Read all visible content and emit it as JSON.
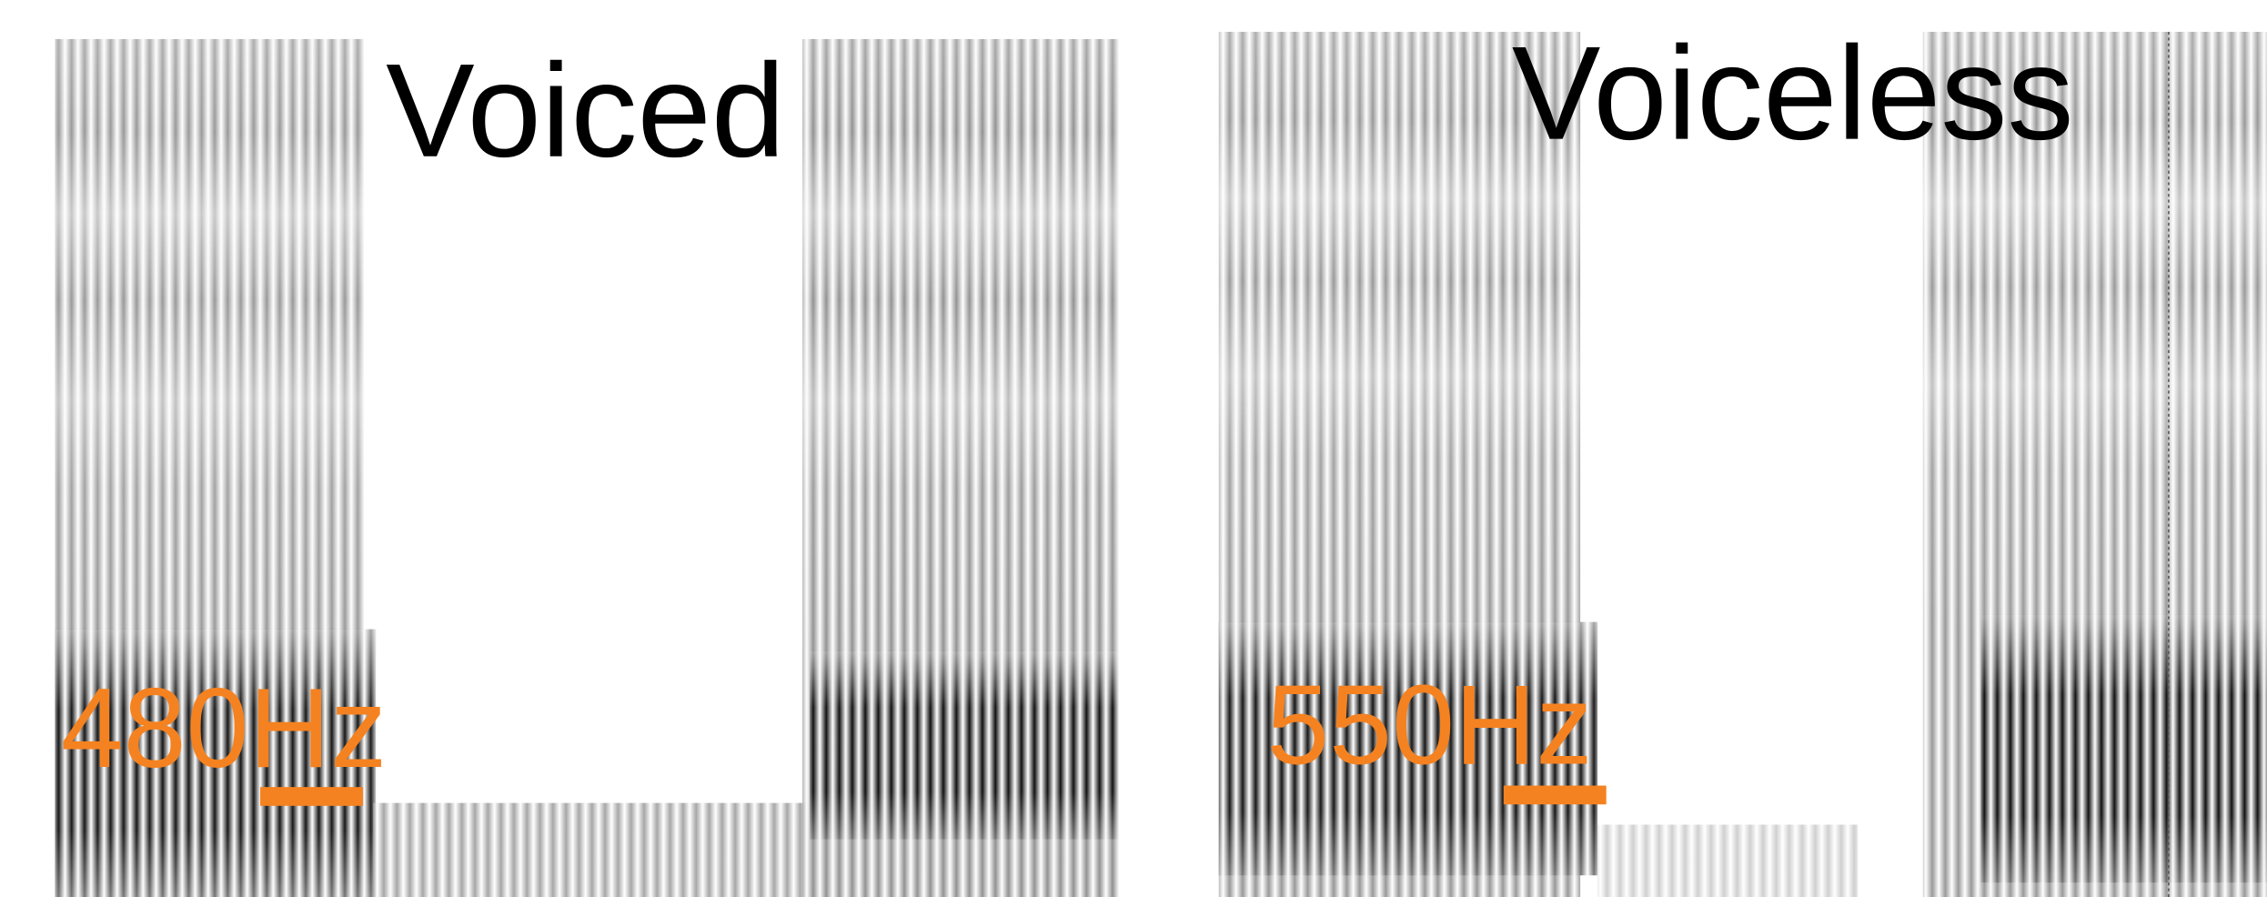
{
  "panels": [
    {
      "title": "Voiced",
      "label": "480Hz"
    },
    {
      "title": "Voiceless",
      "label": "550Hz"
    }
  ]
}
